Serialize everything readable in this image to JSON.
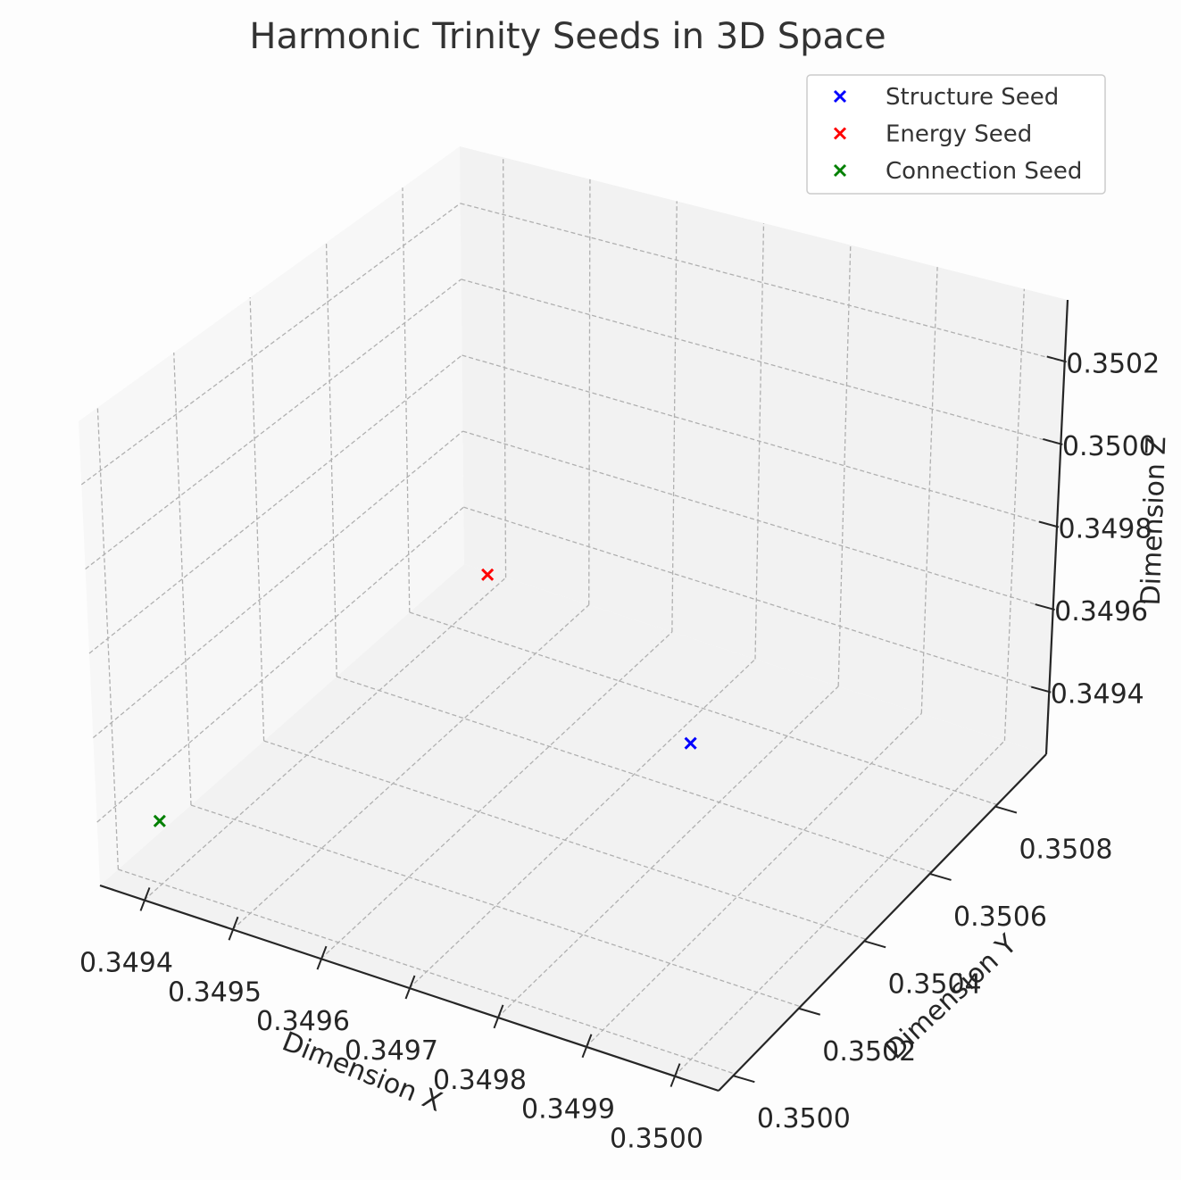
{
  "chart_data": {
    "type": "scatter3d",
    "title": "Harmonic Trinity Seeds in 3D Space",
    "xlabel": "Dimension X",
    "ylabel": "Dimension Y",
    "zlabel": "Dimension Z",
    "xlim": [
      0.34935,
      0.35005
    ],
    "ylim": [
      0.34995,
      0.35095
    ],
    "zlim": [
      0.34925,
      0.35035
    ],
    "x_ticks": [
      "0.3494",
      "0.3495",
      "0.3496",
      "0.3497",
      "0.3498",
      "0.3499",
      "0.3500"
    ],
    "y_ticks": [
      "0.3500",
      "0.3502",
      "0.3504",
      "0.3506",
      "0.3508"
    ],
    "z_ticks": [
      "0.3494",
      "0.3496",
      "0.3498",
      "0.3500",
      "0.3502"
    ],
    "grid": true,
    "legend_position": "top-right",
    "series": [
      {
        "name": "Structure Seed",
        "color": "#0000ff",
        "marker": "x",
        "points": [
          {
            "x": 0.35,
            "y": 0.35,
            "z": 0.35
          }
        ]
      },
      {
        "name": "Energy Seed",
        "color": "#ff0000",
        "marker": "x",
        "points": [
          {
            "x": 0.3494,
            "y": 0.3509,
            "z": 0.3493
          }
        ]
      },
      {
        "name": "Connection Seed",
        "color": "#008000",
        "marker": "x",
        "points": [
          {
            "x": 0.3494,
            "y": 0.35,
            "z": 0.3494
          }
        ]
      }
    ]
  }
}
